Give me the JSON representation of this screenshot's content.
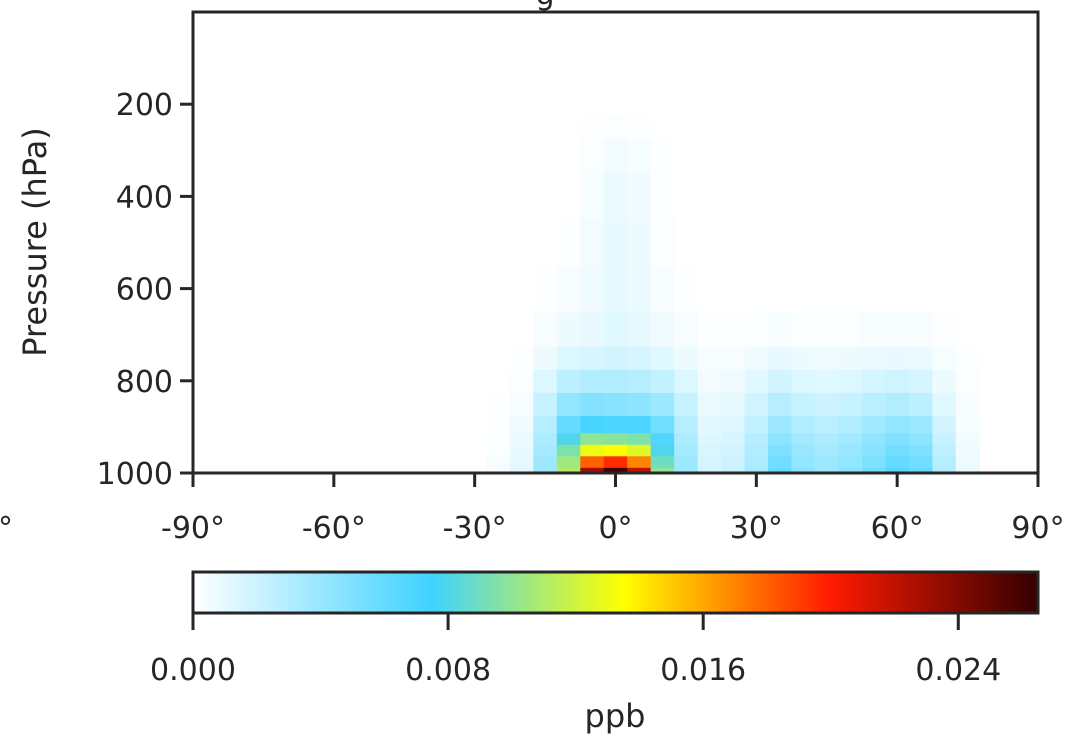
{
  "chart_data": [
    {
      "type": "heatmap",
      "title": "",
      "xlabel": "",
      "ylabel": "Pressure (hPa)",
      "xlim": [
        -90,
        90
      ],
      "ylim": [
        1000,
        0
      ],
      "y_inverted": true,
      "grid": false,
      "xticks": [
        -90,
        -60,
        -30,
        0,
        30,
        60,
        90
      ],
      "xtick_labels": [
        "-90°",
        "-60°",
        "-30°",
        "0°",
        "30°",
        "60°",
        "90°"
      ],
      "yticks": [
        200,
        400,
        600,
        800,
        1000
      ],
      "ytick_labels": [
        "200",
        "400",
        "600",
        "800",
        "1000"
      ],
      "value_units": "ppb",
      "latitudes": [
        -25,
        -20,
        -15,
        -10,
        -5,
        0,
        5,
        10,
        15,
        20,
        25,
        30,
        35,
        40,
        45,
        50,
        55,
        60,
        65,
        70,
        75
      ],
      "pressure_levels": [
        1000,
        975,
        950,
        925,
        900,
        850,
        800,
        750,
        700,
        600,
        500,
        400,
        300,
        250
      ],
      "values": [
        [
          0.0003,
          0.0012,
          0.004,
          0.011,
          0.023,
          0.026,
          0.022,
          0.01,
          0.004,
          0.0018,
          0.0022,
          0.0035,
          0.006,
          0.0045,
          0.004,
          0.0045,
          0.0055,
          0.0065,
          0.006,
          0.003,
          0.0008
        ],
        [
          0.0003,
          0.001,
          0.0038,
          0.0105,
          0.018,
          0.0195,
          0.017,
          0.009,
          0.0038,
          0.0016,
          0.002,
          0.0032,
          0.0055,
          0.0042,
          0.0038,
          0.0042,
          0.005,
          0.006,
          0.0055,
          0.0028,
          0.0007
        ],
        [
          0.0002,
          0.0009,
          0.0035,
          0.0095,
          0.013,
          0.0135,
          0.0125,
          0.008,
          0.0035,
          0.0015,
          0.0018,
          0.003,
          0.005,
          0.004,
          0.0035,
          0.004,
          0.0047,
          0.0055,
          0.005,
          0.0025,
          0.0006
        ],
        [
          0.0002,
          0.0008,
          0.0032,
          0.008,
          0.01,
          0.0098,
          0.0095,
          0.0068,
          0.0032,
          0.0013,
          0.0016,
          0.0028,
          0.0045,
          0.0036,
          0.0032,
          0.0036,
          0.0043,
          0.005,
          0.0045,
          0.0022,
          0.0005
        ],
        [
          0.0001,
          0.0006,
          0.0028,
          0.006,
          0.0072,
          0.007,
          0.007,
          0.0055,
          0.0028,
          0.0011,
          0.0013,
          0.0024,
          0.0038,
          0.003,
          0.0027,
          0.003,
          0.0037,
          0.0042,
          0.0038,
          0.0018,
          0.0004
        ],
        [
          0.0001,
          0.0004,
          0.0022,
          0.0042,
          0.0048,
          0.0046,
          0.0045,
          0.0038,
          0.0022,
          0.0008,
          0.001,
          0.0018,
          0.0028,
          0.0022,
          0.002,
          0.0022,
          0.0027,
          0.003,
          0.0026,
          0.0012,
          0.0003
        ],
        [
          0.0,
          0.0002,
          0.0014,
          0.0026,
          0.003,
          0.003,
          0.0028,
          0.0024,
          0.0014,
          0.0005,
          0.0006,
          0.0012,
          0.0018,
          0.0014,
          0.0012,
          0.0014,
          0.0017,
          0.0019,
          0.0016,
          0.0007,
          0.0002
        ],
        [
          0.0,
          0.0001,
          0.0007,
          0.0014,
          0.0016,
          0.0018,
          0.0016,
          0.0012,
          0.0007,
          0.0003,
          0.0003,
          0.0006,
          0.0009,
          0.0007,
          0.0006,
          0.0007,
          0.0008,
          0.0009,
          0.0008,
          0.0004,
          0.0001
        ],
        [
          0.0,
          0.0,
          0.0003,
          0.0007,
          0.0009,
          0.0012,
          0.001,
          0.0006,
          0.0003,
          0.0001,
          0.0001,
          0.0002,
          0.0003,
          0.0002,
          0.0002,
          0.0002,
          0.0003,
          0.0003,
          0.0003,
          0.0001,
          0.0
        ],
        [
          0.0,
          0.0,
          0.0001,
          0.0003,
          0.0006,
          0.001,
          0.0008,
          0.0003,
          0.0001,
          0.0,
          0.0,
          0.0,
          0.0,
          0.0,
          0.0,
          0.0,
          0.0,
          0.0,
          0.0,
          0.0,
          0.0
        ],
        [
          0.0,
          0.0,
          0.0,
          0.0001,
          0.0005,
          0.0009,
          0.0007,
          0.0002,
          0.0,
          0.0,
          0.0,
          0.0,
          0.0,
          0.0,
          0.0,
          0.0,
          0.0,
          0.0,
          0.0,
          0.0,
          0.0
        ],
        [
          0.0,
          0.0,
          0.0,
          0.0,
          0.0004,
          0.0008,
          0.0006,
          0.0001,
          0.0,
          0.0,
          0.0,
          0.0,
          0.0,
          0.0,
          0.0,
          0.0,
          0.0,
          0.0,
          0.0,
          0.0,
          0.0
        ],
        [
          0.0,
          0.0,
          0.0,
          0.0,
          0.0002,
          0.0005,
          0.0004,
          0.0001,
          0.0,
          0.0,
          0.0,
          0.0,
          0.0,
          0.0,
          0.0,
          0.0,
          0.0,
          0.0,
          0.0,
          0.0,
          0.0
        ],
        [
          0.0,
          0.0,
          0.0,
          0.0,
          0.0001,
          0.0002,
          0.0001,
          0.0,
          0.0,
          0.0,
          0.0,
          0.0,
          0.0,
          0.0,
          0.0,
          0.0,
          0.0,
          0.0,
          0.0,
          0.0,
          0.0
        ]
      ]
    },
    {
      "type": "colorbar",
      "orientation": "horizontal",
      "label": "ppb",
      "vmin": 0.0,
      "vmax": 0.0265,
      "ticks": [
        0.0,
        0.008,
        0.016,
        0.024
      ],
      "tick_labels": [
        "0.000",
        "0.008",
        "0.016",
        "0.024"
      ],
      "colormap_stops": [
        {
          "v": 0.0,
          "color": "#ffffff"
        },
        {
          "v": 0.0075,
          "color": "#3fd2ff"
        },
        {
          "v": 0.0135,
          "color": "#ffff00"
        },
        {
          "v": 0.02,
          "color": "#ff1a00"
        },
        {
          "v": 0.0265,
          "color": "#330000"
        }
      ]
    }
  ],
  "clipped_text": {
    "title_fragment": "g",
    "left_tick_fragment": "°"
  },
  "colors": {
    "axes": "#262626",
    "text": "#262626",
    "background": "#ffffff"
  }
}
